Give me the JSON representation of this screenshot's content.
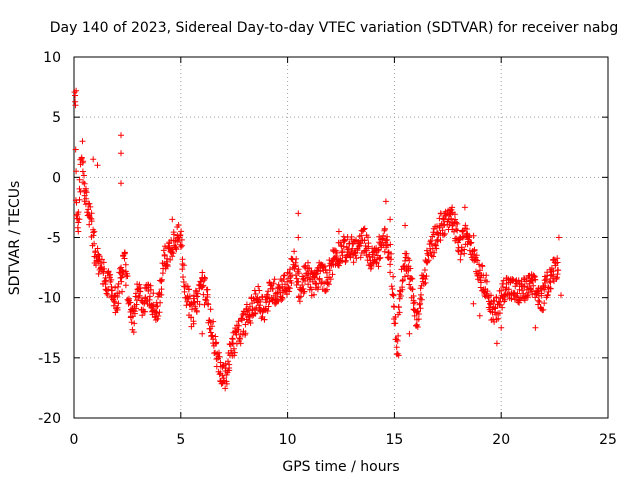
{
  "chart_data": {
    "type": "scatter",
    "title": "Day 140 of 2023, Sidereal Day-to-day VTEC variation (SDTVAR) for receiver nabg",
    "xlabel": "GPS time / hours",
    "ylabel": "SDTVAR / TECUs",
    "xlim": [
      0,
      25
    ],
    "ylim": [
      -20,
      10
    ],
    "x_ticks": [
      0,
      5,
      10,
      15,
      20,
      25
    ],
    "x_tick_labels": [
      "0",
      "5",
      "10",
      "15",
      "20",
      "25"
    ],
    "y_ticks": [
      -20,
      -15,
      -10,
      -5,
      0,
      5,
      10
    ],
    "y_tick_labels": [
      "-20",
      "-15",
      "-10",
      "-5",
      "0",
      "5",
      "10"
    ],
    "grid": true,
    "marker": "+",
    "marker_color": "#ff0000",
    "series": [
      {
        "name": "SDTVAR",
        "trend": [
          [
            0.0,
            7.0
          ],
          [
            0.05,
            7.0
          ],
          [
            0.08,
            -2.5
          ],
          [
            0.2,
            -3.5
          ],
          [
            0.35,
            1.5
          ],
          [
            0.5,
            -1.0
          ],
          [
            0.7,
            -3.0
          ],
          [
            0.9,
            -5.0
          ],
          [
            1.0,
            -6.5
          ],
          [
            1.2,
            -7.5
          ],
          [
            1.5,
            -8.5
          ],
          [
            1.8,
            -9.5
          ],
          [
            2.0,
            -10.5
          ],
          [
            2.2,
            -8.0
          ],
          [
            2.4,
            -7.0
          ],
          [
            2.6,
            -11.0
          ],
          [
            2.8,
            -12.0
          ],
          [
            3.0,
            -9.5
          ],
          [
            3.2,
            -10.5
          ],
          [
            3.5,
            -9.5
          ],
          [
            3.8,
            -11.0
          ],
          [
            4.0,
            -10.5
          ],
          [
            4.2,
            -7.0
          ],
          [
            4.5,
            -6.0
          ],
          [
            4.7,
            -5.0
          ],
          [
            5.0,
            -5.0
          ],
          [
            5.2,
            -9.0
          ],
          [
            5.5,
            -11.5
          ],
          [
            5.8,
            -10.0
          ],
          [
            6.0,
            -8.5
          ],
          [
            6.2,
            -10.0
          ],
          [
            6.5,
            -13.0
          ],
          [
            6.7,
            -15.0
          ],
          [
            6.9,
            -16.5
          ],
          [
            7.1,
            -16.5
          ],
          [
            7.4,
            -14.0
          ],
          [
            7.7,
            -13.0
          ],
          [
            8.0,
            -12.0
          ],
          [
            8.3,
            -11.0
          ],
          [
            8.6,
            -10.0
          ],
          [
            8.9,
            -11.0
          ],
          [
            9.2,
            -9.5
          ],
          [
            9.5,
            -9.5
          ],
          [
            9.8,
            -9.0
          ],
          [
            10.0,
            -9.0
          ],
          [
            10.3,
            -7.0
          ],
          [
            10.6,
            -9.5
          ],
          [
            10.9,
            -8.0
          ],
          [
            11.2,
            -9.0
          ],
          [
            11.5,
            -8.0
          ],
          [
            11.8,
            -8.5
          ],
          [
            12.2,
            -6.5
          ],
          [
            12.6,
            -6.0
          ],
          [
            13.0,
            -6.0
          ],
          [
            13.3,
            -6.0
          ],
          [
            13.6,
            -5.0
          ],
          [
            13.9,
            -7.0
          ],
          [
            14.2,
            -6.5
          ],
          [
            14.5,
            -5.0
          ],
          [
            14.8,
            -6.5
          ],
          [
            15.0,
            -11.0
          ],
          [
            15.1,
            -14.5
          ],
          [
            15.3,
            -9.0
          ],
          [
            15.6,
            -6.5
          ],
          [
            15.9,
            -10.5
          ],
          [
            16.1,
            -12.0
          ],
          [
            16.3,
            -9.0
          ],
          [
            16.6,
            -6.5
          ],
          [
            16.9,
            -5.0
          ],
          [
            17.2,
            -4.0
          ],
          [
            17.5,
            -3.5
          ],
          [
            17.8,
            -4.0
          ],
          [
            18.1,
            -6.0
          ],
          [
            18.4,
            -4.5
          ],
          [
            18.7,
            -6.0
          ],
          [
            19.0,
            -8.0
          ],
          [
            19.3,
            -9.0
          ],
          [
            19.6,
            -11.5
          ],
          [
            19.9,
            -10.5
          ],
          [
            20.2,
            -9.0
          ],
          [
            20.6,
            -9.5
          ],
          [
            21.0,
            -9.5
          ],
          [
            21.4,
            -9.0
          ],
          [
            21.7,
            -9.5
          ],
          [
            21.9,
            -10.5
          ],
          [
            22.1,
            -9.0
          ],
          [
            22.4,
            -8.0
          ],
          [
            22.7,
            -7.0
          ]
        ],
        "outliers": [
          [
            0.05,
            6.8
          ],
          [
            0.1,
            7.2
          ],
          [
            0.1,
            0.5
          ],
          [
            0.2,
            -4.5
          ],
          [
            0.4,
            3.0
          ],
          [
            0.9,
            1.5
          ],
          [
            1.1,
            1.0
          ],
          [
            2.2,
            3.5
          ],
          [
            2.2,
            2.0
          ],
          [
            2.2,
            -0.5
          ],
          [
            2.25,
            -9.5
          ],
          [
            4.6,
            -3.5
          ],
          [
            6.0,
            -13.0
          ],
          [
            10.5,
            -3.0
          ],
          [
            10.5,
            -5.0
          ],
          [
            12.4,
            -4.5
          ],
          [
            14.6,
            -2.0
          ],
          [
            14.8,
            -3.5
          ],
          [
            15.2,
            -14.8
          ],
          [
            15.5,
            -4.0
          ],
          [
            15.7,
            -13.0
          ],
          [
            17.7,
            -2.5
          ],
          [
            18.3,
            -2.5
          ],
          [
            18.7,
            -10.5
          ],
          [
            19.0,
            -11.5
          ],
          [
            19.8,
            -13.8
          ],
          [
            20.0,
            -12.5
          ],
          [
            21.6,
            -12.5
          ],
          [
            22.7,
            -5.0
          ],
          [
            22.8,
            -9.8
          ]
        ]
      }
    ]
  }
}
